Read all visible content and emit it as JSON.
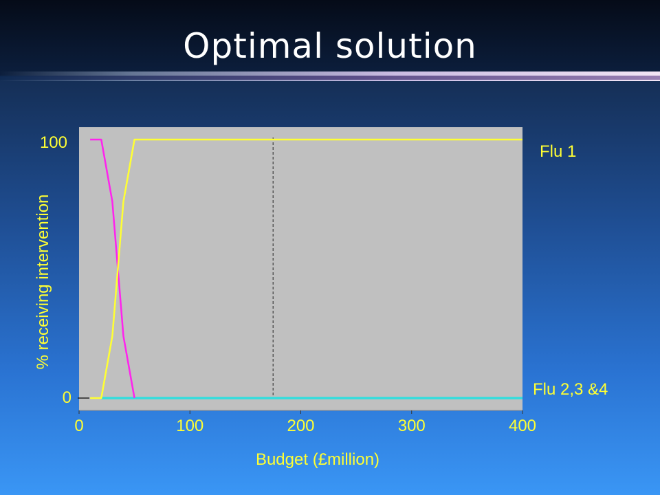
{
  "slide": {
    "title": "Optimal solution"
  },
  "chart_data": {
    "type": "line",
    "title": "",
    "xlabel": "Budget (£million)",
    "ylabel": "% receiving intervention",
    "xlim": [
      0,
      400
    ],
    "ylim": [
      0,
      100
    ],
    "xticks": [
      "0",
      "100",
      "200",
      "300",
      "400"
    ],
    "yticks": [
      "0",
      "100"
    ],
    "grid": false,
    "vline_x": 175,
    "series": [
      {
        "name": "Flu 1",
        "color": "#ffff33",
        "x": [
          10,
          20,
          30,
          40,
          50,
          400
        ],
        "y": [
          0,
          0,
          24,
          76,
          100,
          100
        ]
      },
      {
        "name": "",
        "color": "#ff22ee",
        "x": [
          10,
          20,
          30,
          40,
          50
        ],
        "y": [
          100,
          100,
          76,
          24,
          0
        ]
      },
      {
        "name": "Flu 2,3 &4",
        "color": "#33dddd",
        "x": [
          20,
          400
        ],
        "y": [
          0,
          0
        ]
      }
    ],
    "series_labels": {
      "flu1": "Flu 1",
      "flu234": "Flu 2,3 &4"
    }
  },
  "colors": {
    "plot_bg": "#c0c0c0",
    "text": "#ffffff",
    "label": "#ffff33"
  }
}
